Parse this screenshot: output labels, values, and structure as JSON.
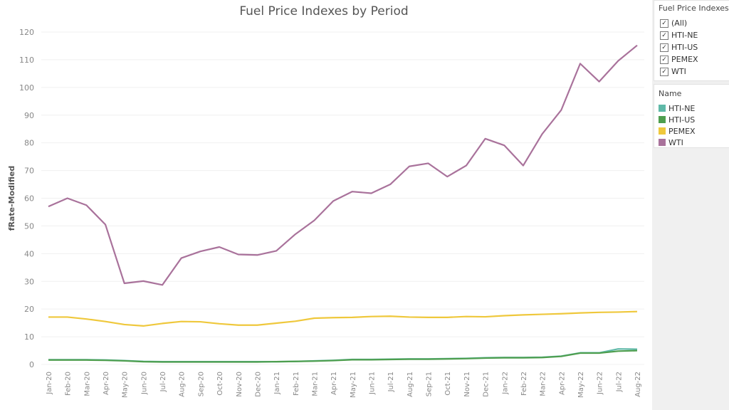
{
  "chart_data": {
    "type": "line",
    "title": "Fuel Price Indexes by Period",
    "xlabel": "",
    "ylabel": "fRate-Modified",
    "ylim": [
      0,
      120
    ],
    "yticks": [
      0,
      10,
      20,
      30,
      40,
      50,
      60,
      70,
      80,
      90,
      100,
      110,
      120
    ],
    "grid": true,
    "legend_position": "right",
    "categories": [
      "Jan-20",
      "Feb-20",
      "Mar-20",
      "Apr-20",
      "May-20",
      "Jun-20",
      "Jul-20",
      "Aug-20",
      "Sep-20",
      "Oct-20",
      "Nov-20",
      "Dec-20",
      "Jan-21",
      "Feb-21",
      "Mar-21",
      "Apr-21",
      "May-21",
      "Jun-21",
      "Jul-21",
      "Aug-21",
      "Sep-21",
      "Oct-21",
      "Nov-21",
      "Dec-21",
      "Jan-22",
      "Feb-22",
      "Mar-22",
      "Apr-22",
      "May-22",
      "Jun-22",
      "Jul-22",
      "Aug-22"
    ],
    "series": [
      {
        "name": "HTI-NE",
        "color": "#5fb9a8",
        "values": [
          1.7,
          1.7,
          1.7,
          1.6,
          1.4,
          1.1,
          1.0,
          1.0,
          1.0,
          1.0,
          1.0,
          1.0,
          1.0,
          1.1,
          1.3,
          1.5,
          1.8,
          1.8,
          1.9,
          2.0,
          2.0,
          2.1,
          2.2,
          2.4,
          2.5,
          2.5,
          2.6,
          3.0,
          4.2,
          4.2,
          5.6,
          5.5
        ]
      },
      {
        "name": "HTI-US",
        "color": "#4e9e4e",
        "values": [
          1.6,
          1.6,
          1.6,
          1.5,
          1.3,
          1.0,
          0.9,
          0.9,
          0.9,
          0.9,
          0.9,
          0.9,
          1.0,
          1.1,
          1.2,
          1.4,
          1.7,
          1.7,
          1.8,
          1.9,
          1.9,
          2.0,
          2.1,
          2.3,
          2.4,
          2.4,
          2.5,
          2.9,
          4.1,
          4.1,
          4.8,
          5.0
        ]
      },
      {
        "name": "PEMEX",
        "color": "#efc83c",
        "values": [
          17.1,
          17.1,
          16.4,
          15.5,
          14.4,
          13.9,
          14.8,
          15.5,
          15.4,
          14.7,
          14.2,
          14.2,
          14.9,
          15.6,
          16.7,
          16.9,
          17.0,
          17.3,
          17.4,
          17.1,
          17.0,
          17.0,
          17.3,
          17.2,
          17.6,
          17.9,
          18.1,
          18.3,
          18.6,
          18.8,
          18.9,
          19.1
        ]
      },
      {
        "name": "WTI",
        "color": "#a9729b",
        "values": [
          57.0,
          60.0,
          57.5,
          50.5,
          29.3,
          30.1,
          28.7,
          38.4,
          40.8,
          42.4,
          39.7,
          39.5,
          41.0,
          47.0,
          52.0,
          59.0,
          62.4,
          61.8,
          65.0,
          71.5,
          72.6,
          67.8,
          71.8,
          81.5,
          79.1,
          71.8,
          83.2,
          91.8,
          108.6,
          102.1,
          109.6,
          115.2
        ]
      }
    ]
  },
  "filter": {
    "title": "Fuel Price Indexes",
    "items": [
      {
        "label": "(All)",
        "checked": true
      },
      {
        "label": "HTI-NE",
        "checked": true
      },
      {
        "label": "HTI-US",
        "checked": true
      },
      {
        "label": "PEMEX",
        "checked": true
      },
      {
        "label": "WTI",
        "checked": true
      }
    ]
  },
  "legend": {
    "title": "Name"
  }
}
